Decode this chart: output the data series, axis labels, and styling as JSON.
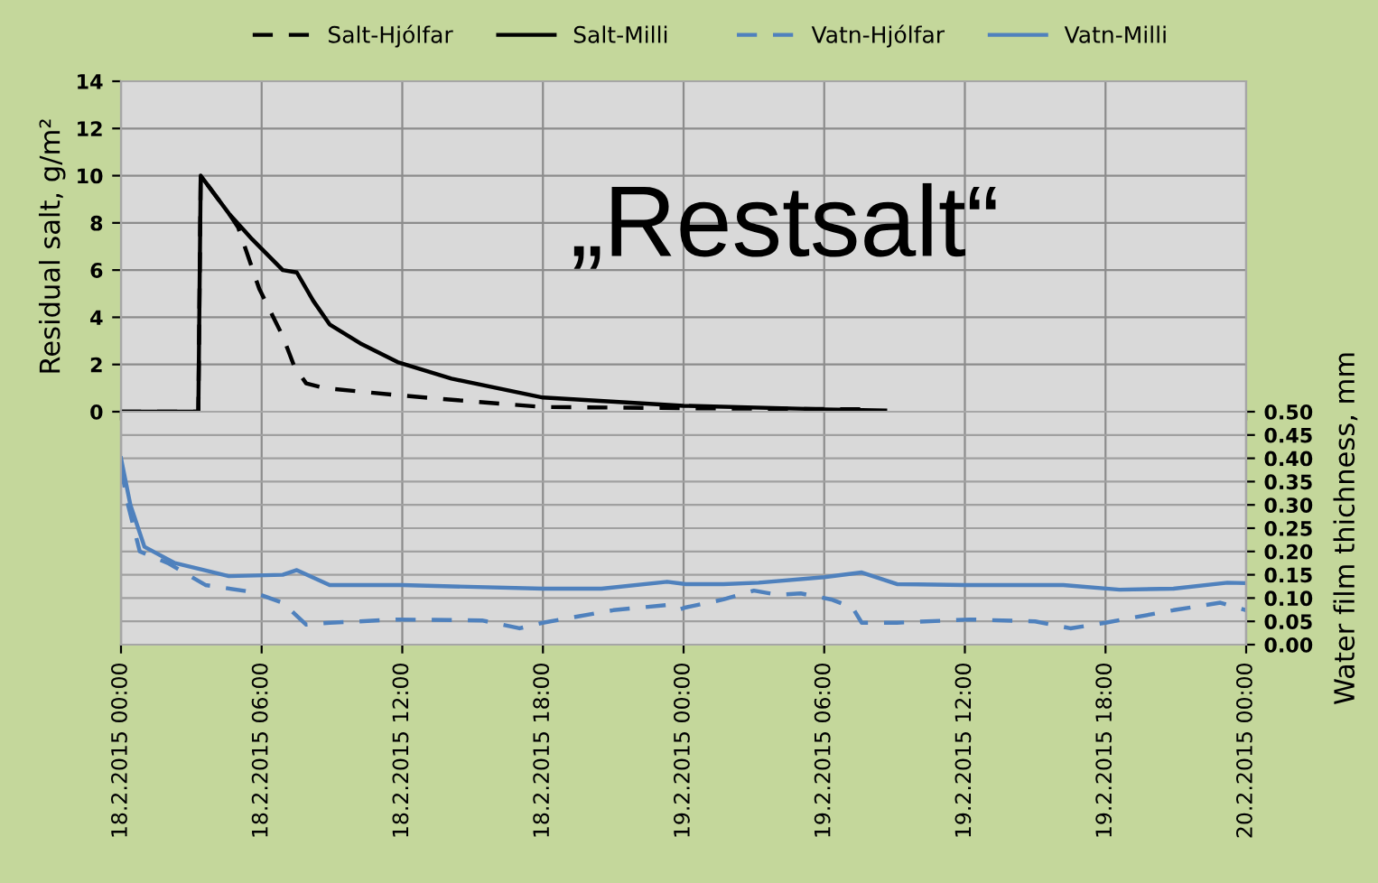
{
  "chart_data": [
    {
      "type": "line",
      "ylabel": "Residual salt, g/m²",
      "annotations": [
        "„Restsalt“"
      ],
      "legend": "top",
      "grid": true,
      "tick_labels": "y",
      "xlim": [
        "2015-02-18T00:00",
        "2015-02-20T00:00"
      ],
      "xticks": [
        {
          "value": "2015-02-18T00:00",
          "label": null
        },
        {
          "value": "2015-02-18T06:00",
          "label": null
        },
        {
          "value": "2015-02-18T12:00",
          "label": null
        },
        {
          "value": "2015-02-18T18:00",
          "label": null
        },
        {
          "value": "2015-02-19T00:00",
          "label": null
        },
        {
          "value": "2015-02-19T06:00",
          "label": null
        },
        {
          "value": "2015-02-19T12:00",
          "label": null
        },
        {
          "value": "2015-02-19T18:00",
          "label": null
        },
        {
          "value": "2015-02-20T00:00",
          "label": null
        }
      ],
      "ylim": [
        0,
        14
      ],
      "yticks": [
        0,
        2,
        4,
        6,
        8,
        10,
        12,
        14
      ],
      "series": [
        {
          "name": "Salt-Hjólfar",
          "color": "#000000",
          "line_style": "dashed",
          "x": [
            "2015-02-18T00:00",
            "2015-02-18T03:18",
            "2015-02-18T03:24",
            "2015-02-18T04:36",
            "2015-02-18T05:00",
            "2015-02-18T05:54",
            "2015-02-18T06:54",
            "2015-02-18T07:24",
            "2015-02-18T07:54",
            "2015-02-18T08:42",
            "2015-02-18T11:48",
            "2015-02-18T15:24",
            "2015-02-18T18:00",
            "2015-02-19T00:00",
            "2015-02-19T08:00"
          ],
          "values": [
            0,
            0,
            10,
            8.4,
            7.8,
            5.2,
            3.2,
            1.9,
            1.2,
            1.0,
            0.7,
            0.4,
            0.2,
            0.15,
            0.1
          ]
        },
        {
          "name": "Salt-Milli",
          "color": "#000000",
          "line_style": "solid",
          "x": [
            "2015-02-18T00:00",
            "2015-02-18T03:18",
            "2015-02-18T03:24",
            "2015-02-18T04:36",
            "2015-02-18T05:36",
            "2015-02-18T06:54",
            "2015-02-18T07:30",
            "2015-02-18T08:12",
            "2015-02-18T08:54",
            "2015-02-18T10:12",
            "2015-02-18T11:48",
            "2015-02-18T14:06",
            "2015-02-18T18:00",
            "2015-02-19T00:00",
            "2015-02-19T06:00",
            "2015-02-19T08:36"
          ],
          "values": [
            0,
            0,
            10,
            8.4,
            7.3,
            6.0,
            5.9,
            4.7,
            3.7,
            2.9,
            2.1,
            1.4,
            0.6,
            0.25,
            0.1,
            0.05
          ]
        }
      ]
    },
    {
      "type": "line",
      "y2label": "Water film thichness, mm",
      "legend": "top",
      "grid": true,
      "xlim": [
        "2015-02-18T00:00",
        "2015-02-20T00:00"
      ],
      "xticks": [
        {
          "value": "2015-02-18T00:00",
          "label": "18.2.2015 00:00"
        },
        {
          "value": "2015-02-18T06:00",
          "label": "18.2.2015 06:00"
        },
        {
          "value": "2015-02-18T12:00",
          "label": "18.2.2015 12:00"
        },
        {
          "value": "2015-02-18T18:00",
          "label": "18.2.2015 18:00"
        },
        {
          "value": "2015-02-19T00:00",
          "label": "19.2.2015 00:00"
        },
        {
          "value": "2015-02-19T06:00",
          "label": "19.2.2015 06:00"
        },
        {
          "value": "2015-02-19T12:00",
          "label": "19.2.2015 12:00"
        },
        {
          "value": "2015-02-19T18:00",
          "label": "19.2.2015 18:00"
        },
        {
          "value": "2015-02-20T00:00",
          "label": "20.2.2015 00:00"
        }
      ],
      "y2lim": [
        0,
        0.5
      ],
      "y2ticks": [
        {
          "value": 0,
          "label": "0.00"
        },
        {
          "value": 0.05,
          "label": "0.05"
        },
        {
          "value": 0.1,
          "label": "0.10"
        },
        {
          "value": 0.15,
          "label": "0.15"
        },
        {
          "value": 0.2,
          "label": "0.20"
        },
        {
          "value": 0.25,
          "label": "0.25"
        },
        {
          "value": 0.3,
          "label": "0.30"
        },
        {
          "value": 0.35,
          "label": "0.35"
        },
        {
          "value": 0.4,
          "label": "0.40"
        },
        {
          "value": 0.45,
          "label": "0.45"
        },
        {
          "value": 0.5,
          "label": "0.50"
        }
      ],
      "series": [
        {
          "name": "Vatn-Hjólfar",
          "color": "#4f81bd",
          "line_style": "dashed",
          "axis": "y2",
          "x": [
            "2015-02-18T00:00",
            "2015-02-18T00:18",
            "2015-02-18T00:48",
            "2015-02-18T02:00",
            "2015-02-18T03:36",
            "2015-02-18T05:36",
            "2015-02-18T06:54",
            "2015-02-18T07:54",
            "2015-02-18T08:54",
            "2015-02-18T11:48",
            "2015-02-18T15:24",
            "2015-02-18T17:00",
            "2015-02-18T18:00",
            "2015-02-18T21:00",
            "2015-02-18T23:18",
            "2015-02-18T23:48",
            "2015-02-19T00:06",
            "2015-02-19T01:42",
            "2015-02-19T03:00",
            "2015-02-19T04:00",
            "2015-02-19T05:00",
            "2015-02-19T06:18",
            "2015-02-19T07:12",
            "2015-02-19T07:36",
            "2015-02-19T09:06",
            "2015-02-19T12:12",
            "2015-02-19T15:00",
            "2015-02-19T16:30",
            "2015-02-19T18:00",
            "2015-02-19T20:54",
            "2015-02-19T22:54",
            "2015-02-20T00:00"
          ],
          "values": [
            0.38,
            0.3,
            0.2,
            0.175,
            0.128,
            0.113,
            0.09,
            0.043,
            0.047,
            0.054,
            0.052,
            0.035,
            0.047,
            0.074,
            0.085,
            0.075,
            0.08,
            0.097,
            0.116,
            0.107,
            0.11,
            0.097,
            0.08,
            0.047,
            0.047,
            0.054,
            0.05,
            0.035,
            0.047,
            0.074,
            0.09,
            0.074
          ]
        },
        {
          "name": "Vatn-Milli",
          "color": "#4f81bd",
          "line_style": "solid",
          "axis": "y2",
          "x": [
            "2015-02-18T00:00",
            "2015-02-18T00:24",
            "2015-02-18T01:00",
            "2015-02-18T02:18",
            "2015-02-18T03:18",
            "2015-02-18T04:36",
            "2015-02-18T06:54",
            "2015-02-18T07:30",
            "2015-02-18T08:54",
            "2015-02-18T12:00",
            "2015-02-18T18:00",
            "2015-02-18T20:30",
            "2015-02-18T23:18",
            "2015-02-19T00:06",
            "2015-02-19T01:42",
            "2015-02-19T03:12",
            "2015-02-19T06:00",
            "2015-02-19T07:36",
            "2015-02-19T09:06",
            "2015-02-19T12:00",
            "2015-02-19T16:12",
            "2015-02-19T18:36",
            "2015-02-19T20:54",
            "2015-02-19T23:12",
            "2015-02-20T00:00"
          ],
          "values": [
            0.4,
            0.3,
            0.21,
            0.175,
            0.163,
            0.147,
            0.15,
            0.16,
            0.128,
            0.128,
            0.12,
            0.12,
            0.135,
            0.13,
            0.13,
            0.133,
            0.145,
            0.155,
            0.13,
            0.128,
            0.128,
            0.118,
            0.12,
            0.133,
            0.132
          ]
        }
      ]
    }
  ]
}
